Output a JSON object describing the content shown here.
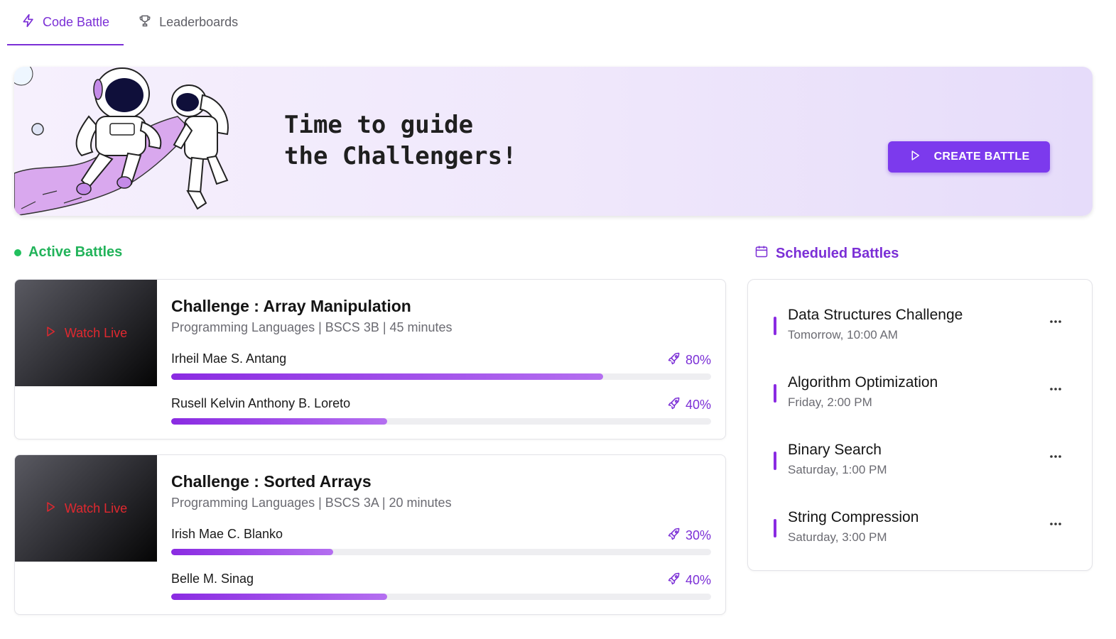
{
  "tabs": [
    {
      "label": "Code Battle",
      "icon": "lightning-icon",
      "active": true
    },
    {
      "label": "Leaderboards",
      "icon": "trophy-icon",
      "active": false
    }
  ],
  "hero": {
    "title_line1": "Time to guide",
    "title_line2": "the Challengers!",
    "create_label": "CREATE BATTLE"
  },
  "active": {
    "heading": "Active Battles",
    "battles": [
      {
        "watch_label": "Watch Live",
        "title": "Challenge : Array Manipulation",
        "meta": "Programming Languages | BSCS 3B | 45 minutes",
        "players": [
          {
            "name": "Irheil Mae S. Antang",
            "pct_label": "80%",
            "progress": 80
          },
          {
            "name": "Rusell Kelvin Anthony B. Loreto",
            "pct_label": "40%",
            "progress": 40
          }
        ]
      },
      {
        "watch_label": "Watch Live",
        "title": "Challenge : Sorted Arrays",
        "meta": "Programming Languages | BSCS 3A | 20 minutes",
        "players": [
          {
            "name": "Irish Mae C. Blanko",
            "pct_label": "30%",
            "progress": 30
          },
          {
            "name": "Belle M. Sinag",
            "pct_label": "40%",
            "progress": 40
          }
        ]
      }
    ]
  },
  "scheduled": {
    "heading": "Scheduled Battles",
    "items": [
      {
        "title": "Data Structures Challenge",
        "time": "Tomorrow, 10:00 AM"
      },
      {
        "title": "Algorithm Optimization",
        "time": "Friday, 2:00 PM"
      },
      {
        "title": "Binary Search",
        "time": "Saturday, 1:00 PM"
      },
      {
        "title": "String Compression",
        "time": "Saturday, 3:00 PM"
      }
    ]
  },
  "colors": {
    "accent": "#7b2fd6",
    "button": "#7c3aed",
    "active_green": "#22b35a",
    "live_red": "#e0282f"
  }
}
